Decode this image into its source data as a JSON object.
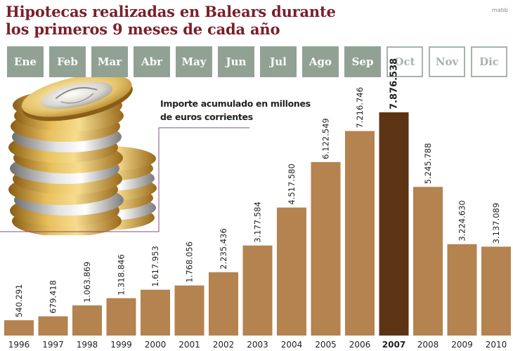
{
  "header": {
    "title_line1": "Hipotecas realizadas en Balears durante",
    "title_line2": "los primeros 9 meses de cada año",
    "credit": "mabb"
  },
  "months": [
    {
      "label": "Ene",
      "active": true
    },
    {
      "label": "Feb",
      "active": true
    },
    {
      "label": "Mar",
      "active": true
    },
    {
      "label": "Abr",
      "active": true
    },
    {
      "label": "May",
      "active": true
    },
    {
      "label": "Jun",
      "active": true
    },
    {
      "label": "Jul",
      "active": true
    },
    {
      "label": "Ago",
      "active": true
    },
    {
      "label": "Sep",
      "active": true
    },
    {
      "label": "Oct",
      "active": false
    },
    {
      "label": "Nov",
      "active": false
    },
    {
      "label": "Dic",
      "active": false
    }
  ],
  "note": {
    "line1": "Importe acumulado en millones",
    "line2": "de euros corrientes"
  },
  "image": {
    "icon": "stacked-euro-coins-icon"
  },
  "colors": {
    "bar": "#b4834f",
    "bar_highlight": "#5c3414",
    "title": "#7a1f2b",
    "month_active": "#91a294",
    "month_inactive": "#a8b2ab"
  },
  "chart_data": {
    "type": "bar",
    "title": "Hipotecas realizadas en Balears durante los primeros 9 meses de cada año",
    "ylabel": "Importe acumulado en millones de euros corrientes",
    "ylim": [
      0,
      7876.538
    ],
    "grid": false,
    "highlight": "2007",
    "categories": [
      "1996",
      "1997",
      "1998",
      "1999",
      "2000",
      "2001",
      "2002",
      "2003",
      "2004",
      "2005",
      "2006",
      "2007",
      "2008",
      "2009",
      "2010"
    ],
    "values": [
      540.291,
      679.418,
      1063.869,
      1318.846,
      1617.953,
      1768.056,
      2235.436,
      3177.584,
      4517.58,
      6122.549,
      7216.746,
      7876.538,
      5245.788,
      3224.63,
      3137.089
    ],
    "value_labels": [
      "540.291",
      "679.418",
      "1.063.869",
      "1.318.846",
      "1.617.953",
      "1.768.056",
      "2.235.436",
      "3.177.584",
      "4.517.580",
      "6.122.549",
      "7.216.746",
      "7.876.538",
      "5.245.788",
      "3.224.630",
      "3.137.089"
    ]
  }
}
